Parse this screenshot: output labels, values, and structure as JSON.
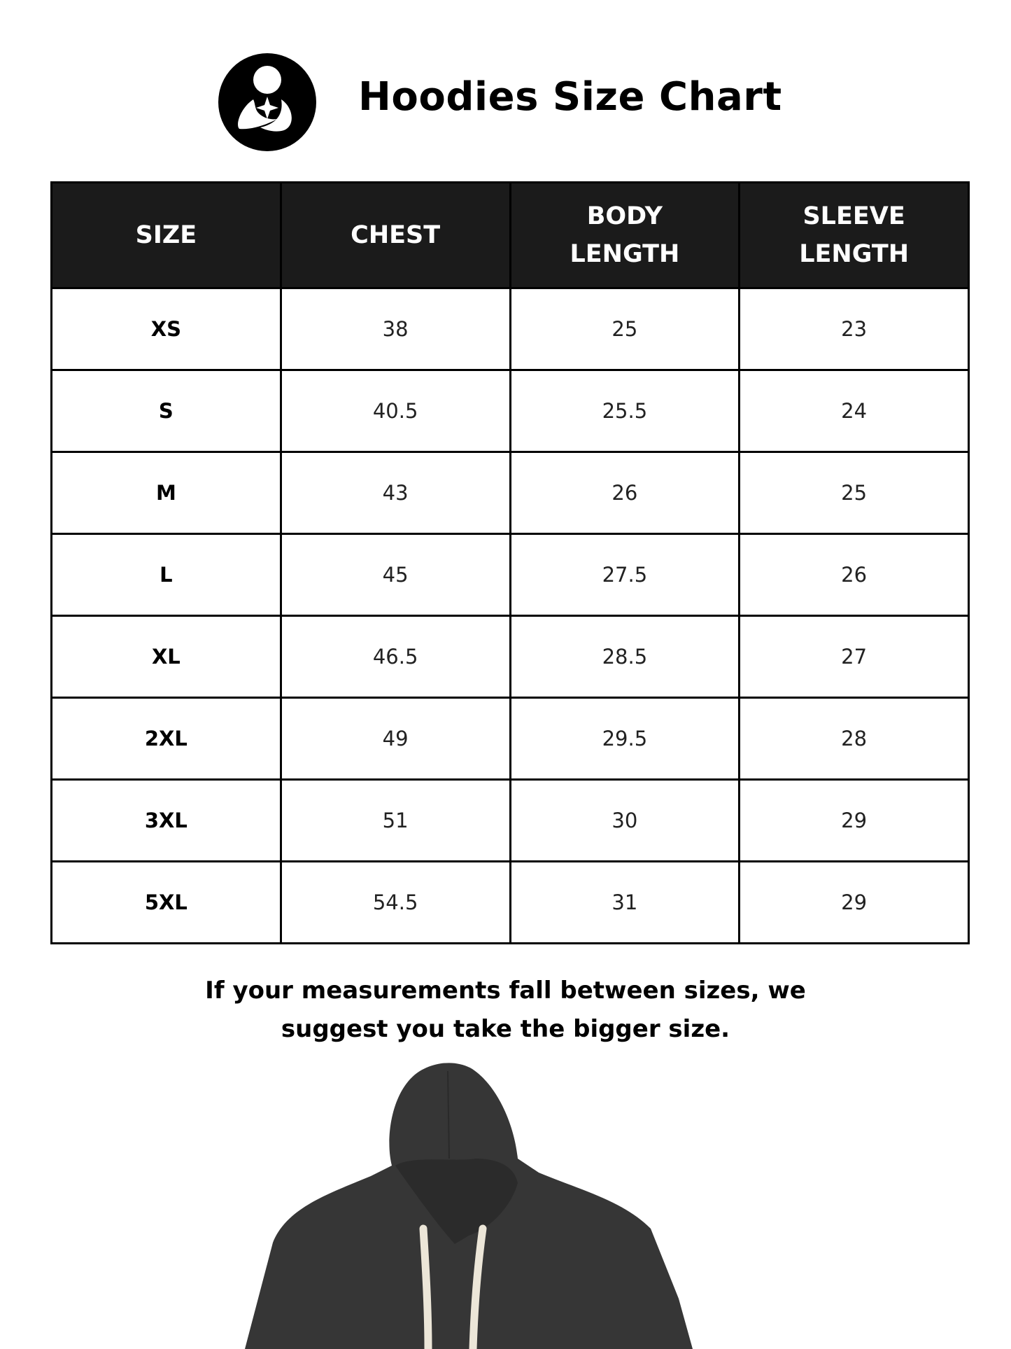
{
  "header": {
    "logo_icon": "mother-holding-baby-logo",
    "title": "Hoodies Size Chart"
  },
  "table": {
    "columns": [
      {
        "line1": "SIZE",
        "line2": ""
      },
      {
        "line1": "CHEST",
        "line2": ""
      },
      {
        "line1": "BODY",
        "line2": "LENGTH"
      },
      {
        "line1": "SLEEVE",
        "line2": "LENGTH"
      }
    ],
    "rows": [
      [
        "XS",
        "38",
        "25",
        "23"
      ],
      [
        "S",
        "40.5",
        "25.5",
        "24"
      ],
      [
        "M",
        "43",
        "26",
        "25"
      ],
      [
        "L",
        "45",
        "27.5",
        "26"
      ],
      [
        "XL",
        "46.5",
        "28.5",
        "27"
      ],
      [
        "2XL",
        "49",
        "29.5",
        "28"
      ],
      [
        "3XL",
        "51",
        "30",
        "29"
      ],
      [
        "5XL",
        "54.5",
        "31",
        "29"
      ]
    ]
  },
  "note": {
    "line1": "If your measurements fall between sizes, we",
    "line2": "suggest you take the bigger size."
  },
  "colors": {
    "header_bg": "#1b1b1b",
    "hoodie": "#363636",
    "drawstring": "#ece6d8"
  }
}
